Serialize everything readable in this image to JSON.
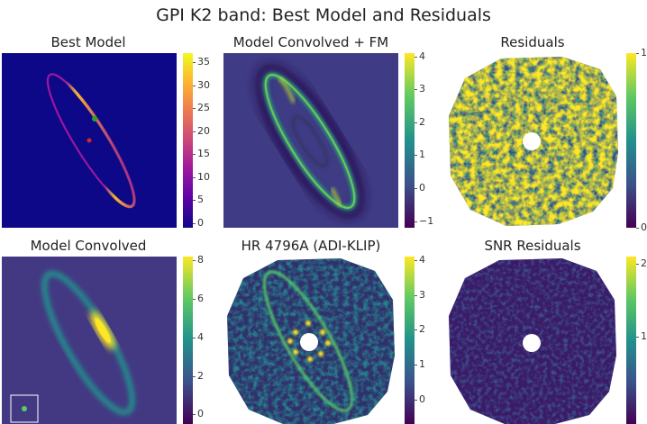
{
  "figure": {
    "title": "GPI K2 band: Best Model and Residuals"
  },
  "colors": {
    "background": "#ffffff",
    "text": "#222222",
    "plasma": [
      "#0d0887",
      "#5c01a6",
      "#9c179e",
      "#cc4778",
      "#ed7953",
      "#fdb42f",
      "#f0f921"
    ],
    "viridis": [
      "#440154",
      "#3b528b",
      "#21918c",
      "#5ec962",
      "#fde725"
    ]
  },
  "chart_data": [
    {
      "type": "heatmap",
      "title": "Best Model",
      "colormap": "plasma",
      "vmin": -1,
      "vmax": 37,
      "colorbar_ticks": [
        0,
        5,
        10,
        15,
        20,
        25,
        30,
        35
      ],
      "colorbar_labels": [
        "0",
        "5",
        "10",
        "15",
        "20",
        "25",
        "30",
        "35"
      ],
      "markers": [
        {
          "name": "green-marker",
          "color": "#2ca02c"
        },
        {
          "name": "red-marker",
          "color": "#d62728"
        }
      ]
    },
    {
      "type": "heatmap",
      "title": "Model Convolved + FM",
      "colormap": "viridis",
      "vmin": -1.2,
      "vmax": 4.1,
      "colorbar_ticks": [
        -1,
        0,
        1,
        2,
        3,
        4
      ],
      "colorbar_labels": [
        "−1",
        "0",
        "1",
        "2",
        "3",
        "4"
      ]
    },
    {
      "type": "heatmap",
      "title": "Residuals",
      "colormap": "viridis",
      "vmin": 0,
      "vmax": 1,
      "colorbar_ticks": [
        0,
        1
      ],
      "colorbar_labels": [
        "0",
        "1"
      ]
    },
    {
      "type": "heatmap",
      "title": "Model Convolved",
      "colormap": "viridis",
      "vmin": -0.5,
      "vmax": 8.2,
      "colorbar_ticks": [
        0,
        2,
        4,
        6,
        8
      ],
      "colorbar_labels": [
        "0",
        "2",
        "4",
        "6",
        "8"
      ]
    },
    {
      "type": "heatmap",
      "title": "HR 4796A (ADI-KLIP)",
      "colormap": "viridis",
      "vmin": -0.7,
      "vmax": 4.1,
      "colorbar_ticks": [
        0,
        1,
        2,
        3,
        4
      ],
      "colorbar_labels": [
        "0",
        "1",
        "2",
        "3",
        "4"
      ]
    },
    {
      "type": "heatmap",
      "title": "SNR Residuals",
      "colormap": "viridis",
      "vmin": -0.2,
      "vmax": 2.1,
      "colorbar_ticks": [
        1,
        2
      ],
      "colorbar_labels": [
        "1",
        "2"
      ]
    }
  ]
}
